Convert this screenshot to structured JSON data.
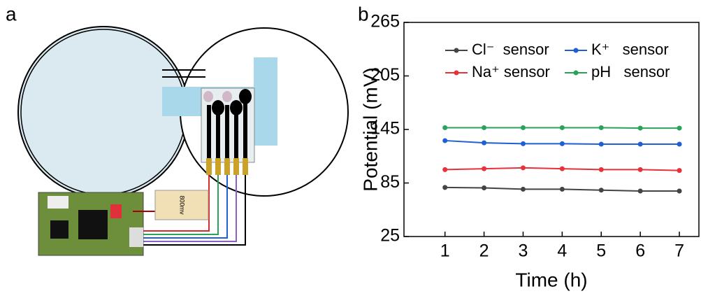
{
  "panel_labels": [
    "a",
    "b"
  ],
  "diagram": {
    "display_label": "800mv"
  },
  "chart_data": {
    "type": "line",
    "x_label": "Time (h)",
    "y_label": "Potential (mV)",
    "x": [
      1,
      2,
      3,
      4,
      5,
      6,
      7
    ],
    "xlim": [
      -0.05,
      7.5
    ],
    "xticks": [
      1,
      2,
      3,
      4,
      5,
      6,
      7
    ],
    "ylim": [
      25,
      265
    ],
    "yticks": [
      25,
      85,
      145,
      205,
      265
    ],
    "legend": "upper center",
    "series": [
      {
        "name": "Cl⁻  sensor",
        "color": "#444444",
        "values": [
          80,
          79.5,
          78,
          78,
          77,
          76,
          76
        ]
      },
      {
        "name": "K⁺   sensor",
        "color": "#1f5fd6",
        "values": [
          132.5,
          130,
          129,
          129,
          128.5,
          128.5,
          128.5
        ]
      },
      {
        "name": "Na⁺ sensor",
        "color": "#e8323a",
        "values": [
          100,
          101,
          102,
          101,
          100,
          100,
          99
        ]
      },
      {
        "name": "pH   sensor",
        "color": "#2aa35a",
        "values": [
          147,
          147,
          147,
          147,
          147,
          146.5,
          146.5
        ]
      }
    ]
  }
}
